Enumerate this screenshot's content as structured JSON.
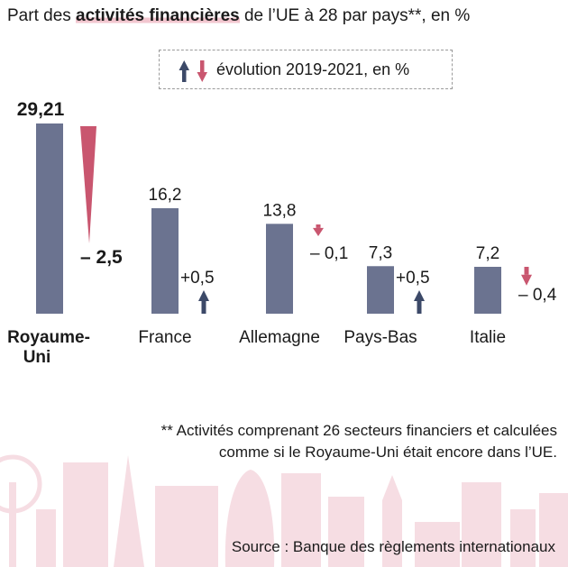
{
  "title": {
    "before": "Part des ",
    "highlight": "activités financières",
    "after": " de l’UE à 28 par pays**, en %"
  },
  "legend": {
    "label": "évolution 2019-2021, en %"
  },
  "colors": {
    "bar": "#6b7390",
    "up_arrow": "#3c4968",
    "down_arrow": "#c9566f",
    "title_highlight": "#f2c6cf",
    "skyline": "#f6dde3"
  },
  "chart_data": {
    "type": "bar",
    "title": "Part des activités financières de l’UE à 28 par pays**, en %",
    "categories": [
      "Royaume-Uni",
      "France",
      "Allemagne",
      "Pays-Bas",
      "Italie"
    ],
    "values": [
      29.21,
      16.2,
      13.8,
      7.3,
      7.2
    ],
    "value_labels": [
      "29,21",
      "16,2",
      "13,8",
      "7,3",
      "7,2"
    ],
    "change_series": {
      "name": "évolution 2019-2021, en %",
      "values": [
        -2.5,
        0.5,
        -0.1,
        0.5,
        -0.4
      ],
      "labels": [
        "– 2,5",
        "+0,5",
        "– 0,1",
        "+0,5",
        "– 0,4"
      ]
    },
    "highlighted_category": "Royaume-Uni",
    "ylim": [
      0,
      29.21
    ],
    "grid": false
  },
  "footnote": {
    "line1": "** Activités comprenant 26 secteurs financiers et calculées",
    "line2": "comme si le Royaume-Uni était encore dans l’UE."
  },
  "source": "Source : Banque des règlements internationaux"
}
